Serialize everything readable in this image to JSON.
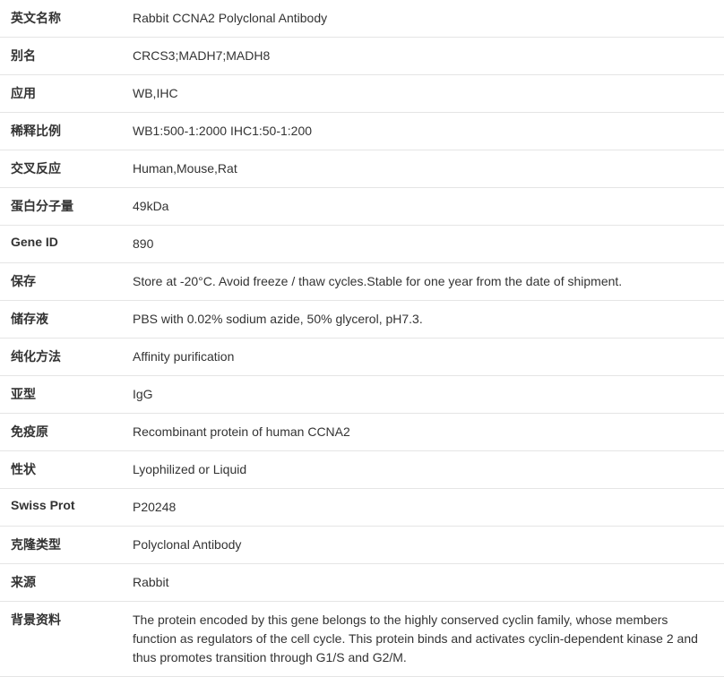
{
  "rows": [
    {
      "label": "英文名称",
      "value": "Rabbit CCNA2 Polyclonal Antibody"
    },
    {
      "label": "别名",
      "value": "CRCS3;MADH7;MADH8"
    },
    {
      "label": "应用",
      "value": "WB,IHC"
    },
    {
      "label": "稀释比例",
      "value": "WB1:500-1:2000 IHC1:50-1:200"
    },
    {
      "label": "交叉反应",
      "value": "Human,Mouse,Rat"
    },
    {
      "label": "蛋白分子量",
      "value": "49kDa"
    },
    {
      "label": "Gene ID",
      "value": "890"
    },
    {
      "label": "保存",
      "value": "Store at -20°C. Avoid freeze / thaw cycles.Stable for one year from the date of shipment."
    },
    {
      "label": "储存液",
      "value": "PBS with 0.02% sodium azide, 50% glycerol, pH7.3."
    },
    {
      "label": "纯化方法",
      "value": "Affinity purification"
    },
    {
      "label": "亚型",
      "value": "IgG"
    },
    {
      "label": "免疫原",
      "value": "Recombinant protein of human CCNA2"
    },
    {
      "label": "性状",
      "value": "Lyophilized or Liquid"
    },
    {
      "label": "Swiss Prot",
      "value": "P20248"
    },
    {
      "label": "克隆类型",
      "value": "Polyclonal Antibody"
    },
    {
      "label": "来源",
      "value": "Rabbit"
    },
    {
      "label": "背景资料",
      "value": "The protein encoded by this gene belongs to the highly conserved cyclin family, whose members function as regulators of the cell cycle. This protein binds and activates cyclin-dependent kinase 2 and thus promotes transition through G1/S and G2/M."
    }
  ]
}
